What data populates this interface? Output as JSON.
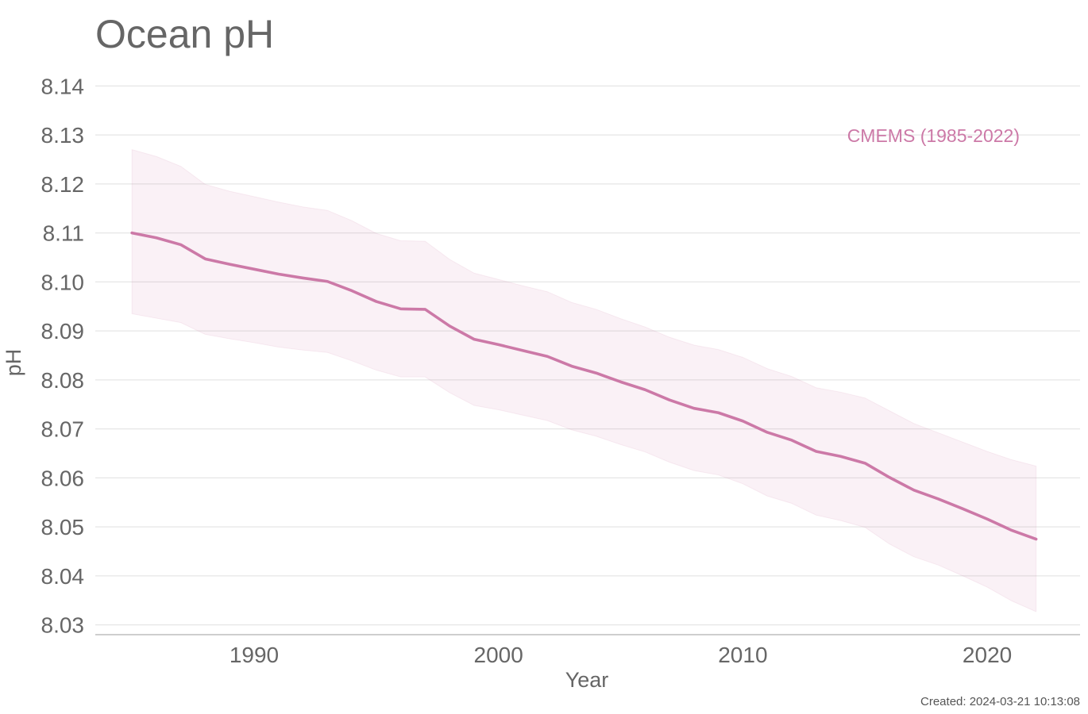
{
  "chart_data": {
    "type": "line",
    "title": "Ocean pH",
    "xlabel": "Year",
    "ylabel": "pH",
    "xlim": [
      1983.5,
      2023.8
    ],
    "ylim": [
      8.028,
      8.142
    ],
    "x_ticks": [
      1990,
      2000,
      2010,
      2020
    ],
    "y_ticks": [
      8.03,
      8.04,
      8.05,
      8.06,
      8.07,
      8.08,
      8.09,
      8.1,
      8.11,
      8.12,
      8.13,
      8.14
    ],
    "grid": "horizontal",
    "legend_placement": "top-right",
    "series": [
      {
        "name": "CMEMS (1985-2022)",
        "color": "#cc79a7",
        "band_color": "#cc79a7",
        "x": [
          1985,
          1986,
          1987,
          1988,
          1989,
          1990,
          1991,
          1992,
          1993,
          1994,
          1995,
          1996,
          1997,
          1998,
          1999,
          2000,
          2001,
          2002,
          2003,
          2004,
          2005,
          2006,
          2007,
          2008,
          2009,
          2010,
          2011,
          2012,
          2013,
          2014,
          2015,
          2016,
          2017,
          2018,
          2019,
          2020,
          2021,
          2022
        ],
        "values": [
          8.11,
          8.109,
          8.1076,
          8.1047,
          8.1036,
          8.1026,
          8.1016,
          8.1008,
          8.1001,
          8.0982,
          8.096,
          8.0945,
          8.0944,
          8.091,
          8.0883,
          8.0872,
          8.086,
          8.0848,
          8.0828,
          8.0814,
          8.0796,
          8.078,
          8.0759,
          8.0742,
          8.0733,
          8.0716,
          8.0693,
          8.0677,
          8.0654,
          8.0644,
          8.063,
          8.0601,
          8.0575,
          8.0557,
          8.0537,
          8.0516,
          8.0493,
          8.0475
        ],
        "lower": [
          8.0935,
          8.0926,
          8.0917,
          8.0893,
          8.0884,
          8.0876,
          8.0867,
          8.0861,
          8.0856,
          8.0839,
          8.082,
          8.0806,
          8.0806,
          8.0774,
          8.0748,
          8.0739,
          8.0728,
          8.0717,
          8.0698,
          8.0685,
          8.0668,
          8.0653,
          8.0632,
          8.0615,
          8.0606,
          8.0588,
          8.0563,
          8.0548,
          8.0524,
          8.0513,
          8.0499,
          8.0465,
          8.0439,
          8.0422,
          8.04,
          8.0377,
          8.0349,
          8.0327
        ],
        "upper": [
          8.127,
          8.1256,
          8.1236,
          8.1199,
          8.1185,
          8.1174,
          8.1163,
          8.1153,
          8.1146,
          8.1125,
          8.1099,
          8.1084,
          8.1083,
          8.1046,
          8.1018,
          8.1005,
          8.0992,
          8.098,
          8.0958,
          8.0944,
          8.0925,
          8.0908,
          8.0887,
          8.0871,
          8.0862,
          8.0846,
          8.0823,
          8.0807,
          8.0784,
          8.0775,
          8.0763,
          8.0737,
          8.0711,
          8.0692,
          8.0673,
          8.0654,
          8.0637,
          8.0624
        ]
      }
    ]
  },
  "footer": {
    "created": "Created: 2024-03-21 10:13:08"
  }
}
